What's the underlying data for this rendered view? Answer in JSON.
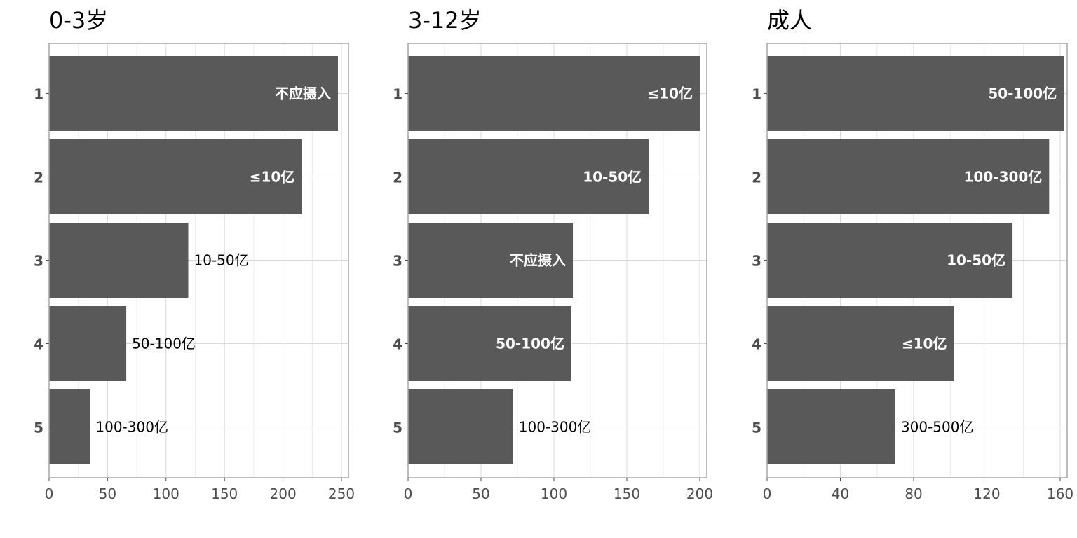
{
  "chart_data": [
    {
      "type": "bar",
      "orientation": "horizontal",
      "title": "0-3岁",
      "categories": [
        "1",
        "2",
        "3",
        "4",
        "5"
      ],
      "values": [
        247,
        216,
        119,
        66,
        35
      ],
      "labels": [
        "不应摄入",
        "≤10亿",
        "10-50亿",
        "50-100亿",
        "100-300亿"
      ],
      "xlim": [
        0,
        250
      ],
      "xticks": [
        "0",
        "50",
        "100",
        "150",
        "200",
        "250"
      ],
      "grid": true
    },
    {
      "type": "bar",
      "orientation": "horizontal",
      "title": "3-12岁",
      "categories": [
        "1",
        "2",
        "3",
        "4",
        "5"
      ],
      "values": [
        200,
        165,
        113,
        112,
        72
      ],
      "labels": [
        "≤10亿",
        "10-50亿",
        "不应摄入",
        "50-100亿",
        "100-300亿"
      ],
      "xlim": [
        0,
        200
      ],
      "xticks": [
        "0",
        "50",
        "100",
        "150",
        "200"
      ],
      "grid": true
    },
    {
      "type": "bar",
      "orientation": "horizontal",
      "title": "成人",
      "categories": [
        "1",
        "2",
        "3",
        "4",
        "5"
      ],
      "values": [
        162,
        154,
        134,
        102,
        70
      ],
      "labels": [
        "50-100亿",
        "100-300亿",
        "10-50亿",
        "≤10亿",
        "300-500亿"
      ],
      "xlim": [
        0,
        160
      ],
      "xticks": [
        "0",
        "40",
        "80",
        "120",
        "160"
      ],
      "grid": true
    }
  ]
}
